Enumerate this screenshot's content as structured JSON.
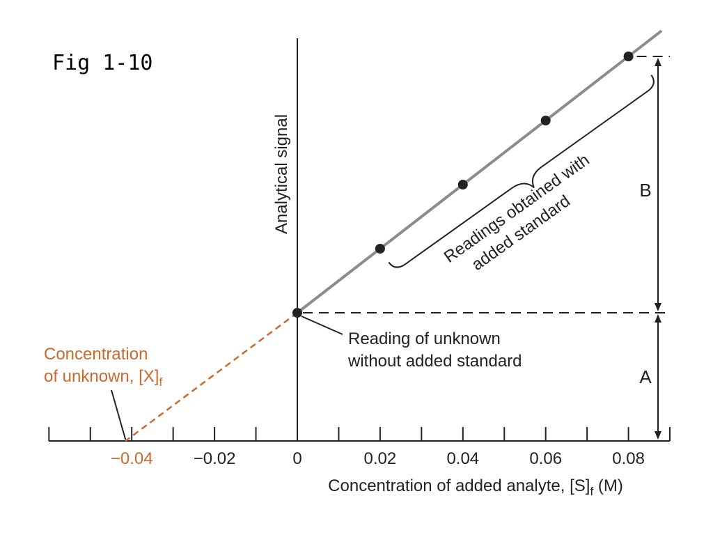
{
  "figure_label": "Fig 1-10",
  "chart_data": {
    "type": "line",
    "title": "",
    "xlabel_main": "Concentration of added analyte, [S]",
    "xlabel_sub": "f",
    "xlabel_unit": " (M)",
    "ylabel": "Analytical signal",
    "xlim": [
      -0.06,
      0.09
    ],
    "ylim": [
      -1.0,
      2.9
    ],
    "x_ticks_labeled": [
      {
        "value": -0.04,
        "label": "−0.04",
        "style": "extrapolated"
      },
      {
        "value": -0.02,
        "label": "−0.02",
        "style": "normal"
      },
      {
        "value": 0,
        "label": "0",
        "style": "normal"
      },
      {
        "value": 0.02,
        "label": "0.02",
        "style": "normal"
      },
      {
        "value": 0.04,
        "label": "0.04",
        "style": "normal"
      },
      {
        "value": 0.06,
        "label": "0.06",
        "style": "normal"
      },
      {
        "value": 0.08,
        "label": "0.08",
        "style": "normal"
      }
    ],
    "x_tick_step": 0.01,
    "series": [
      {
        "kind": "measured",
        "color": "#8c8c8c",
        "points": [
          {
            "x": 0,
            "y": 1.0
          },
          {
            "x": 0.02,
            "y": 1.5
          },
          {
            "x": 0.04,
            "y": 2.0
          },
          {
            "x": 0.06,
            "y": 2.5
          },
          {
            "x": 0.08,
            "y": 3.0
          }
        ],
        "line_extends_to_x": 0.088
      },
      {
        "kind": "extrapolation",
        "color": "#c8692e",
        "dashed": true,
        "from": {
          "x": 0,
          "y": 1.0
        },
        "to": {
          "x": -0.0415,
          "y": 0
        }
      }
    ],
    "annotations": {
      "unknown_reading": [
        "Reading of unknown",
        "without added standard"
      ],
      "added_standard": [
        "Readings obtained with",
        "added standard"
      ],
      "concentration_unknown_line1": "Concentration",
      "concentration_unknown_line2": "of unknown, [X]",
      "concentration_unknown_sub": "f",
      "dimension_a": "A",
      "dimension_b": "B"
    },
    "colors": {
      "axis": "#222222",
      "measured_line": "#8c8c8c",
      "points": "#222222",
      "extrapolation": "#c8692e",
      "guide_dash": "#222222"
    }
  }
}
